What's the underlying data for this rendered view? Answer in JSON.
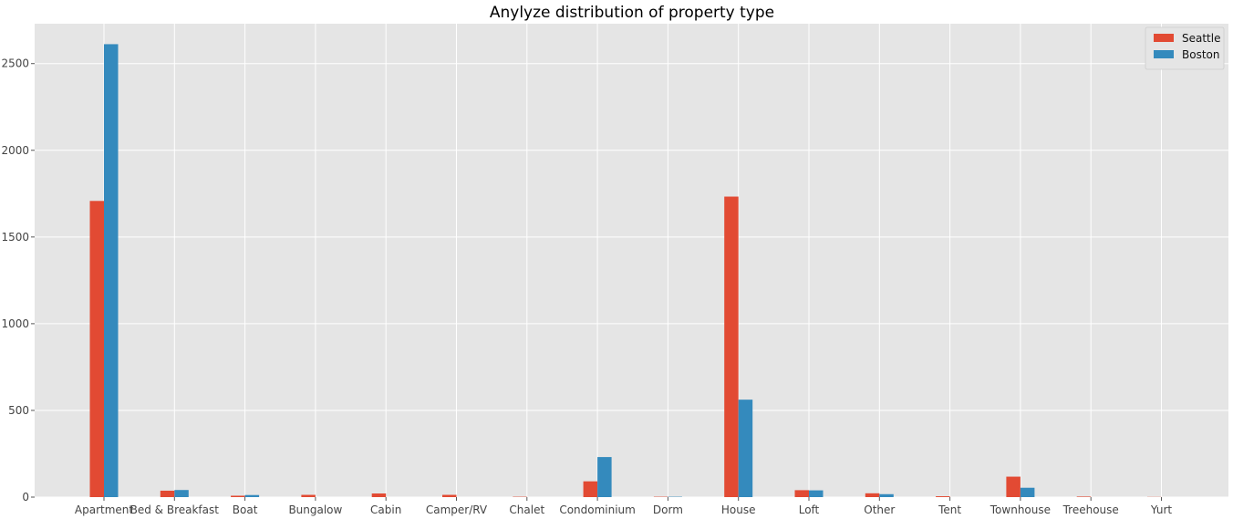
{
  "colors": {
    "background": "#e5e5e5",
    "grid": "#ffffff",
    "seattle": "#e24a33",
    "boston": "#348abd"
  },
  "chart_data": {
    "type": "bar",
    "title": "Anylyze distribution of property type",
    "xlabel": "",
    "ylabel": "",
    "ylim": [
      0,
      2730
    ],
    "yticks": [
      0,
      500,
      1000,
      1500,
      2000,
      2500
    ],
    "grid": true,
    "legend_position": "top-right",
    "categories": [
      "Apartment",
      "Bed & Breakfast",
      "Boat",
      "Bungalow",
      "Cabin",
      "Camper/RV",
      "Chalet",
      "Condominium",
      "Dorm",
      "House",
      "Loft",
      "Other",
      "Tent",
      "Townhouse",
      "Treehouse",
      "Yurt"
    ],
    "series": [
      {
        "name": "Seattle",
        "color": "#e24a33",
        "values": [
          1708,
          37,
          8,
          13,
          21,
          13,
          2,
          91,
          2,
          1733,
          40,
          22,
          5,
          118,
          3,
          1
        ]
      },
      {
        "name": "Boston",
        "color": "#348abd",
        "values": [
          2612,
          41,
          12,
          0,
          0,
          0,
          0,
          231,
          2,
          562,
          39,
          17,
          0,
          54,
          0,
          0
        ]
      }
    ]
  }
}
